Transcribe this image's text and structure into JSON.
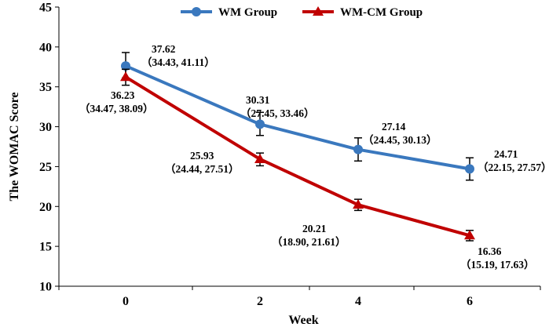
{
  "chart_data": {
    "type": "line",
    "title": "",
    "xlabel": "Week",
    "ylabel": "The WOMAC Score",
    "categories": [
      "0",
      "2",
      "4",
      "6"
    ],
    "x": [
      0,
      2,
      4,
      6
    ],
    "ylim": [
      10,
      45
    ],
    "yticks": [
      "10",
      "15",
      "20",
      "25",
      "30",
      "35",
      "40",
      "45"
    ],
    "grid": false,
    "legend_position": "top-center",
    "series": [
      {
        "name": "WM Group",
        "color": "#3A78BE",
        "marker": "circle",
        "values": [
          37.62,
          30.31,
          27.14,
          24.71
        ],
        "ci_low": [
          34.43,
          27.45,
          24.45,
          22.15
        ],
        "ci_high": [
          41.11,
          33.46,
          30.13,
          27.57
        ],
        "err_low": [
          36.1,
          28.9,
          25.7,
          23.3
        ],
        "err_high": [
          39.3,
          31.8,
          28.6,
          26.1
        ],
        "value_labels": [
          "37.62",
          "30.31",
          "27.14",
          "24.71"
        ],
        "ci_labels": [
          "（34.43, 41.11）",
          "（27.45, 33.46）",
          "（24.45, 30.13）",
          "（22.15, 27.57）"
        ]
      },
      {
        "name": "WM-CM Group",
        "color": "#C00000",
        "marker": "triangle",
        "values": [
          36.23,
          25.93,
          20.21,
          16.36
        ],
        "ci_low": [
          34.47,
          24.44,
          18.9,
          15.19
        ],
        "ci_high": [
          38.09,
          27.51,
          21.61,
          17.63
        ],
        "err_low": [
          35.2,
          25.1,
          19.5,
          15.7
        ],
        "err_high": [
          37.2,
          26.7,
          20.9,
          17.0
        ],
        "value_labels": [
          "36.23",
          "25.93",
          "20.21",
          "16.36"
        ],
        "ci_labels": [
          "（34.47, 38.09）",
          "（24.44, 27.51）",
          "（18.90, 21.61）",
          "（15.19, 17.63）"
        ]
      }
    ]
  }
}
